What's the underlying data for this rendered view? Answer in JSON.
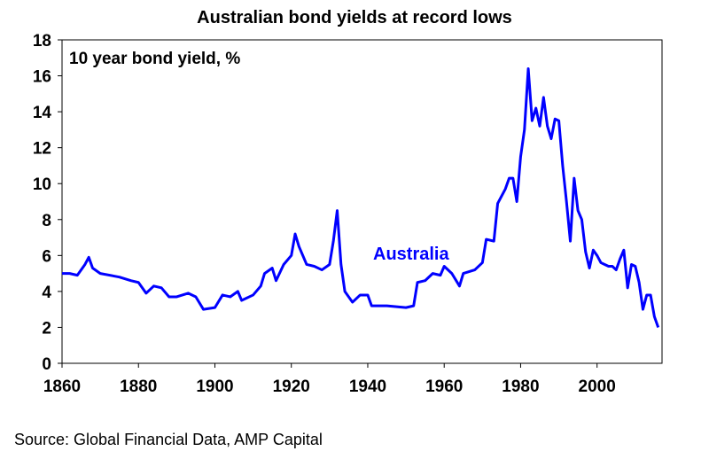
{
  "chart_data": {
    "type": "line",
    "title": "Australian bond yields at record lows",
    "annotation": "10 year bond yield, %",
    "source": "Source: Global Financial Data, AMP Capital",
    "x": [
      1860,
      1862,
      1864,
      1866,
      1867,
      1868,
      1870,
      1875,
      1878,
      1880,
      1882,
      1884,
      1886,
      1888,
      1890,
      1893,
      1895,
      1897,
      1900,
      1902,
      1904,
      1906,
      1907,
      1910,
      1912,
      1913,
      1915,
      1916,
      1918,
      1920,
      1921,
      1922,
      1924,
      1926,
      1928,
      1930,
      1931,
      1932,
      1933,
      1934,
      1936,
      1938,
      1940,
      1941,
      1945,
      1950,
      1952,
      1953,
      1955,
      1957,
      1959,
      1960,
      1962,
      1964,
      1965,
      1968,
      1970,
      1971,
      1973,
      1974,
      1976,
      1977,
      1978,
      1979,
      1980,
      1981,
      1982,
      1983,
      1984,
      1985,
      1986,
      1987,
      1988,
      1989,
      1990,
      1991,
      1992,
      1993,
      1994,
      1995,
      1996,
      1997,
      1998,
      1999,
      2000,
      2001,
      2002,
      2003,
      2004,
      2005,
      2006,
      2007,
      2008,
      2009,
      2010,
      2011,
      2012,
      2013,
      2014,
      2015,
      2016
    ],
    "series": [
      {
        "name": "Australia",
        "color": "#0000ff",
        "values": [
          5.0,
          5.0,
          4.9,
          5.5,
          5.9,
          5.3,
          5.0,
          4.8,
          4.6,
          4.5,
          3.9,
          4.3,
          4.2,
          3.7,
          3.7,
          3.9,
          3.7,
          3.0,
          3.1,
          3.8,
          3.7,
          4.0,
          3.5,
          3.8,
          4.3,
          5.0,
          5.3,
          4.6,
          5.5,
          6.0,
          7.2,
          6.5,
          5.5,
          5.4,
          5.2,
          5.5,
          6.8,
          8.5,
          5.5,
          4.0,
          3.4,
          3.8,
          3.8,
          3.2,
          3.2,
          3.1,
          3.2,
          4.5,
          4.6,
          5.0,
          4.9,
          5.4,
          5.0,
          4.3,
          5.0,
          5.2,
          5.6,
          6.9,
          6.8,
          8.9,
          9.7,
          10.3,
          10.3,
          9.0,
          11.5,
          13.0,
          16.4,
          13.5,
          14.2,
          13.2,
          14.8,
          13.2,
          12.5,
          13.6,
          13.5,
          11.0,
          9.0,
          6.8,
          10.3,
          8.5,
          8.0,
          6.2,
          5.3,
          6.3,
          6.0,
          5.6,
          5.5,
          5.4,
          5.4,
          5.2,
          5.8,
          6.3,
          4.2,
          5.5,
          5.4,
          4.5,
          3.0,
          3.8,
          3.8,
          2.6,
          2.0
        ]
      }
    ],
    "xlim": [
      1860,
      2017
    ],
    "xticks": [
      1860,
      1880,
      1900,
      1920,
      1940,
      1960,
      1980,
      2000
    ],
    "ylim": [
      0,
      18
    ],
    "yticks": [
      0,
      2,
      4,
      6,
      8,
      10,
      12,
      14,
      16,
      18
    ]
  }
}
